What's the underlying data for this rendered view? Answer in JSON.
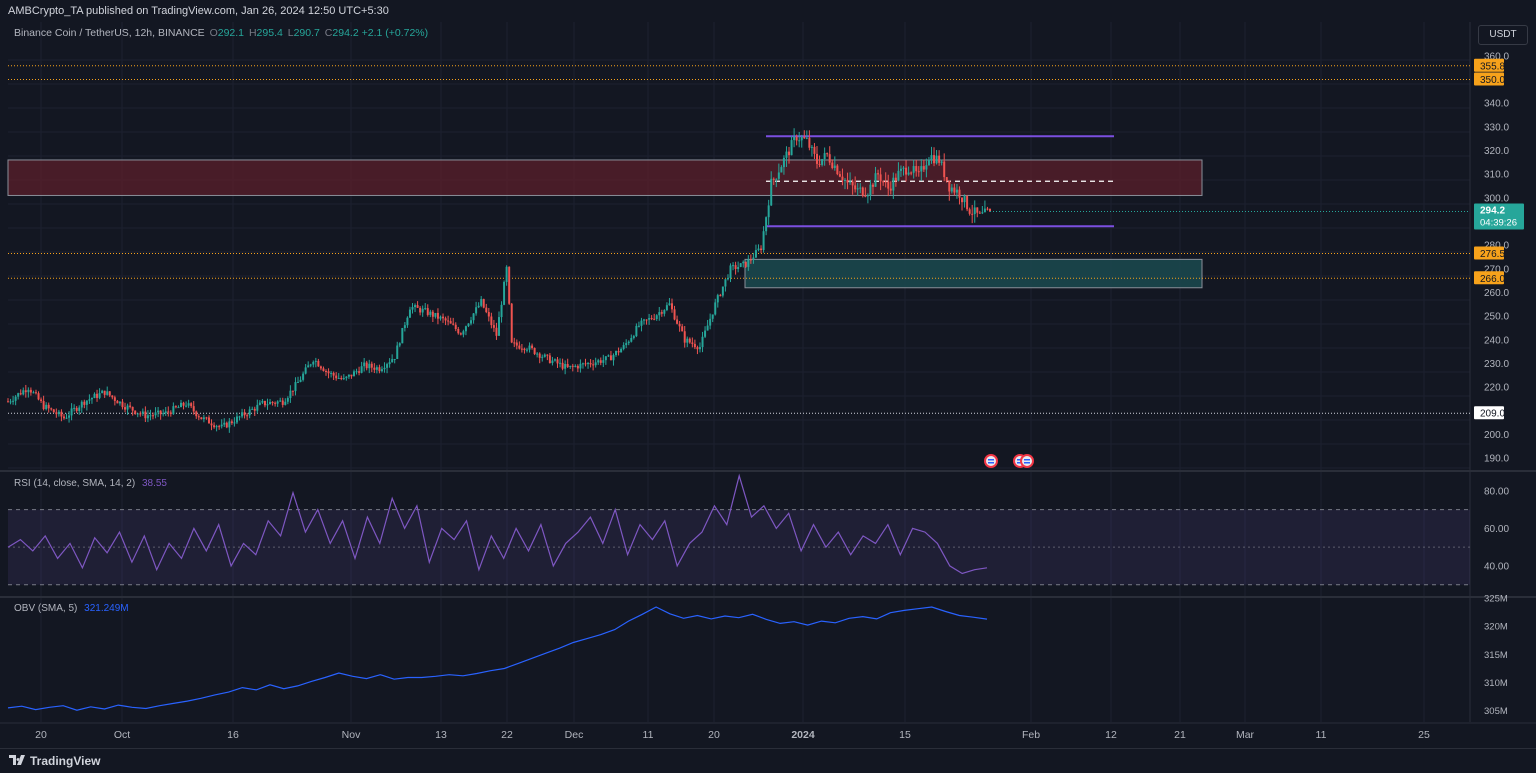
{
  "header": {
    "published": "AMBCrypto_TA published on TradingView.com, Jan 26, 2024 12:50 UTC+5:30"
  },
  "legend": {
    "symbol": "Binance Coin / TetherUS, 12h, BINANCE",
    "o_label": "O",
    "o_value": "292.1",
    "h_label": "H",
    "h_value": "295.4",
    "l_label": "L",
    "l_value": "290.7",
    "c_label": "C",
    "c_value": "294.2",
    "change": "+2.1 (+0.72%)"
  },
  "currency": "USDT",
  "rsi_legend": {
    "label": "RSI (14, close, SMA, 14, 2)",
    "value": "38.55"
  },
  "obv_legend": {
    "label": "OBV (SMA, 5)",
    "value": "321.249M"
  },
  "footer": {
    "brand": "TradingView"
  },
  "colors": {
    "up": "#26a69a",
    "down": "#ef5350",
    "level": "#f7a21b",
    "supply_zone": "#5b1f2b",
    "demand_zone": "#1b4a4f",
    "range": "#7b4fe0",
    "rsi_line": "#7e57c2",
    "obv_line": "#2962ff",
    "bg": "#131722"
  },
  "chart_data": [
    {
      "type": "candlestick",
      "title": "Binance Coin / TetherUS, 12h, BINANCE",
      "price_scale": {
        "ticks": [
          "360.0",
          "340.0",
          "330.0",
          "320.0",
          "310.0",
          "300.0",
          "280.0",
          "270.0",
          "260.0",
          "250.0",
          "240.0",
          "230.0",
          "220.0",
          "200.0",
          "190.0"
        ],
        "ylim": [
          185,
          365
        ]
      },
      "x_labels": [
        "20",
        "Oct",
        "16",
        "Nov",
        "13",
        "22",
        "Dec",
        "11",
        "20",
        "2024",
        "15",
        "Feb",
        "12",
        "21",
        "Mar",
        "11",
        "25"
      ],
      "level_labels": [
        {
          "value": 355.8,
          "text": "355.8",
          "style": "orange"
        },
        {
          "value": 350.0,
          "text": "350.0",
          "style": "orange"
        },
        {
          "value": 276.5,
          "text": "276.5",
          "style": "orange"
        },
        {
          "value": 266.0,
          "text": "266.0",
          "style": "orange"
        },
        {
          "value": 209.0,
          "text": "209.0",
          "style": "white"
        }
      ],
      "last_price": {
        "value": 294.2,
        "text": "294.2",
        "countdown": "04:39:26"
      },
      "zones": [
        {
          "name": "supply",
          "from": 301,
          "to": 316
        },
        {
          "name": "demand",
          "from": 262,
          "to": 274
        }
      ],
      "range": {
        "high": 326,
        "mid": 307,
        "low": 288
      },
      "path": [
        [
          0,
          214
        ],
        [
          8,
          220
        ],
        [
          14,
          212
        ],
        [
          22,
          207
        ],
        [
          30,
          214
        ],
        [
          38,
          218
        ],
        [
          46,
          212
        ],
        [
          54,
          208
        ],
        [
          62,
          209
        ],
        [
          70,
          213
        ],
        [
          76,
          207
        ],
        [
          84,
          203
        ],
        [
          92,
          208
        ],
        [
          100,
          213
        ],
        [
          108,
          214
        ],
        [
          114,
          222
        ],
        [
          120,
          232
        ],
        [
          126,
          226
        ],
        [
          132,
          223
        ],
        [
          140,
          229
        ],
        [
          146,
          228
        ],
        [
          152,
          233
        ],
        [
          158,
          254
        ],
        [
          164,
          252
        ],
        [
          172,
          248
        ],
        [
          178,
          243
        ],
        [
          186,
          256
        ],
        [
          192,
          242
        ],
        [
          196,
          270
        ],
        [
          198,
          238
        ],
        [
          204,
          237
        ],
        [
          212,
          232
        ],
        [
          220,
          228
        ],
        [
          228,
          230
        ],
        [
          236,
          232
        ],
        [
          242,
          237
        ],
        [
          248,
          246
        ],
        [
          254,
          250
        ],
        [
          260,
          255
        ],
        [
          266,
          240
        ],
        [
          272,
          237
        ],
        [
          278,
          255
        ],
        [
          284,
          270
        ],
        [
          290,
          272
        ],
        [
          296,
          279
        ],
        [
          300,
          306
        ],
        [
          306,
          318
        ],
        [
          310,
          326
        ],
        [
          314,
          324
        ],
        [
          318,
          315
        ],
        [
          322,
          318
        ],
        [
          326,
          312
        ],
        [
          330,
          306
        ],
        [
          334,
          303
        ],
        [
          338,
          303
        ],
        [
          342,
          310
        ],
        [
          346,
          304
        ],
        [
          350,
          310
        ],
        [
          354,
          313
        ],
        [
          358,
          309
        ],
        [
          362,
          318
        ],
        [
          366,
          316
        ],
        [
          370,
          305
        ],
        [
          374,
          302
        ],
        [
          378,
          295
        ],
        [
          382,
          292
        ],
        [
          386,
          294.2
        ]
      ],
      "markers": [
        "calendar-icon-1",
        "calendar-icon-2"
      ]
    },
    {
      "type": "line",
      "title": "RSI (14, close, SMA, 14, 2)",
      "ticks": [
        "80.00",
        "60.00",
        "40.00"
      ],
      "bands": {
        "upper": 70,
        "middle": 50,
        "lower": 30
      },
      "ylim": [
        24,
        90
      ],
      "last": 38.55,
      "values": [
        50,
        54,
        48,
        56,
        44,
        52,
        39,
        55,
        47,
        58,
        42,
        56,
        38,
        52,
        44,
        60,
        48,
        62,
        40,
        52,
        46,
        64,
        56,
        79,
        58,
        70,
        52,
        64,
        44,
        66,
        52,
        76,
        60,
        72,
        42,
        60,
        54,
        64,
        38,
        56,
        44,
        60,
        48,
        62,
        40,
        52,
        58,
        66,
        52,
        70,
        46,
        62,
        54,
        64,
        40,
        52,
        58,
        72,
        62,
        88,
        66,
        72,
        60,
        68,
        48,
        62,
        50,
        58,
        46,
        56,
        52,
        62,
        46,
        60,
        58,
        52,
        40,
        36,
        38,
        39
      ]
    },
    {
      "type": "line",
      "title": "OBV (SMA, 5)",
      "ticks": [
        "325M",
        "320M",
        "315M",
        "310M",
        "305M"
      ],
      "ylim": [
        303,
        325
      ],
      "last": 321.249,
      "values": [
        305.5,
        305.8,
        305.2,
        305.6,
        305.9,
        305.1,
        305.7,
        305.3,
        306,
        305.6,
        305.4,
        305.9,
        306.3,
        306.7,
        307.2,
        307.8,
        308.3,
        309.1,
        308.7,
        309.6,
        308.9,
        309.4,
        310.2,
        310.9,
        311.7,
        311.1,
        310.7,
        311.4,
        310.6,
        310.9,
        310.9,
        311.1,
        311.4,
        311.2,
        311.6,
        312.1,
        312.5,
        313.4,
        314.3,
        315.2,
        316.1,
        317.1,
        317.8,
        318.5,
        319.4,
        320.9,
        322.1,
        323.4,
        322.2,
        321.4,
        321.9,
        321.3,
        321.8,
        321.5,
        322.1,
        321.2,
        320.5,
        320.8,
        320.2,
        320.9,
        320.6,
        321.4,
        321.7,
        321.3,
        322.4,
        322.8,
        323.1,
        323.4,
        322.6,
        321.9,
        321.6,
        321.249
      ]
    }
  ]
}
